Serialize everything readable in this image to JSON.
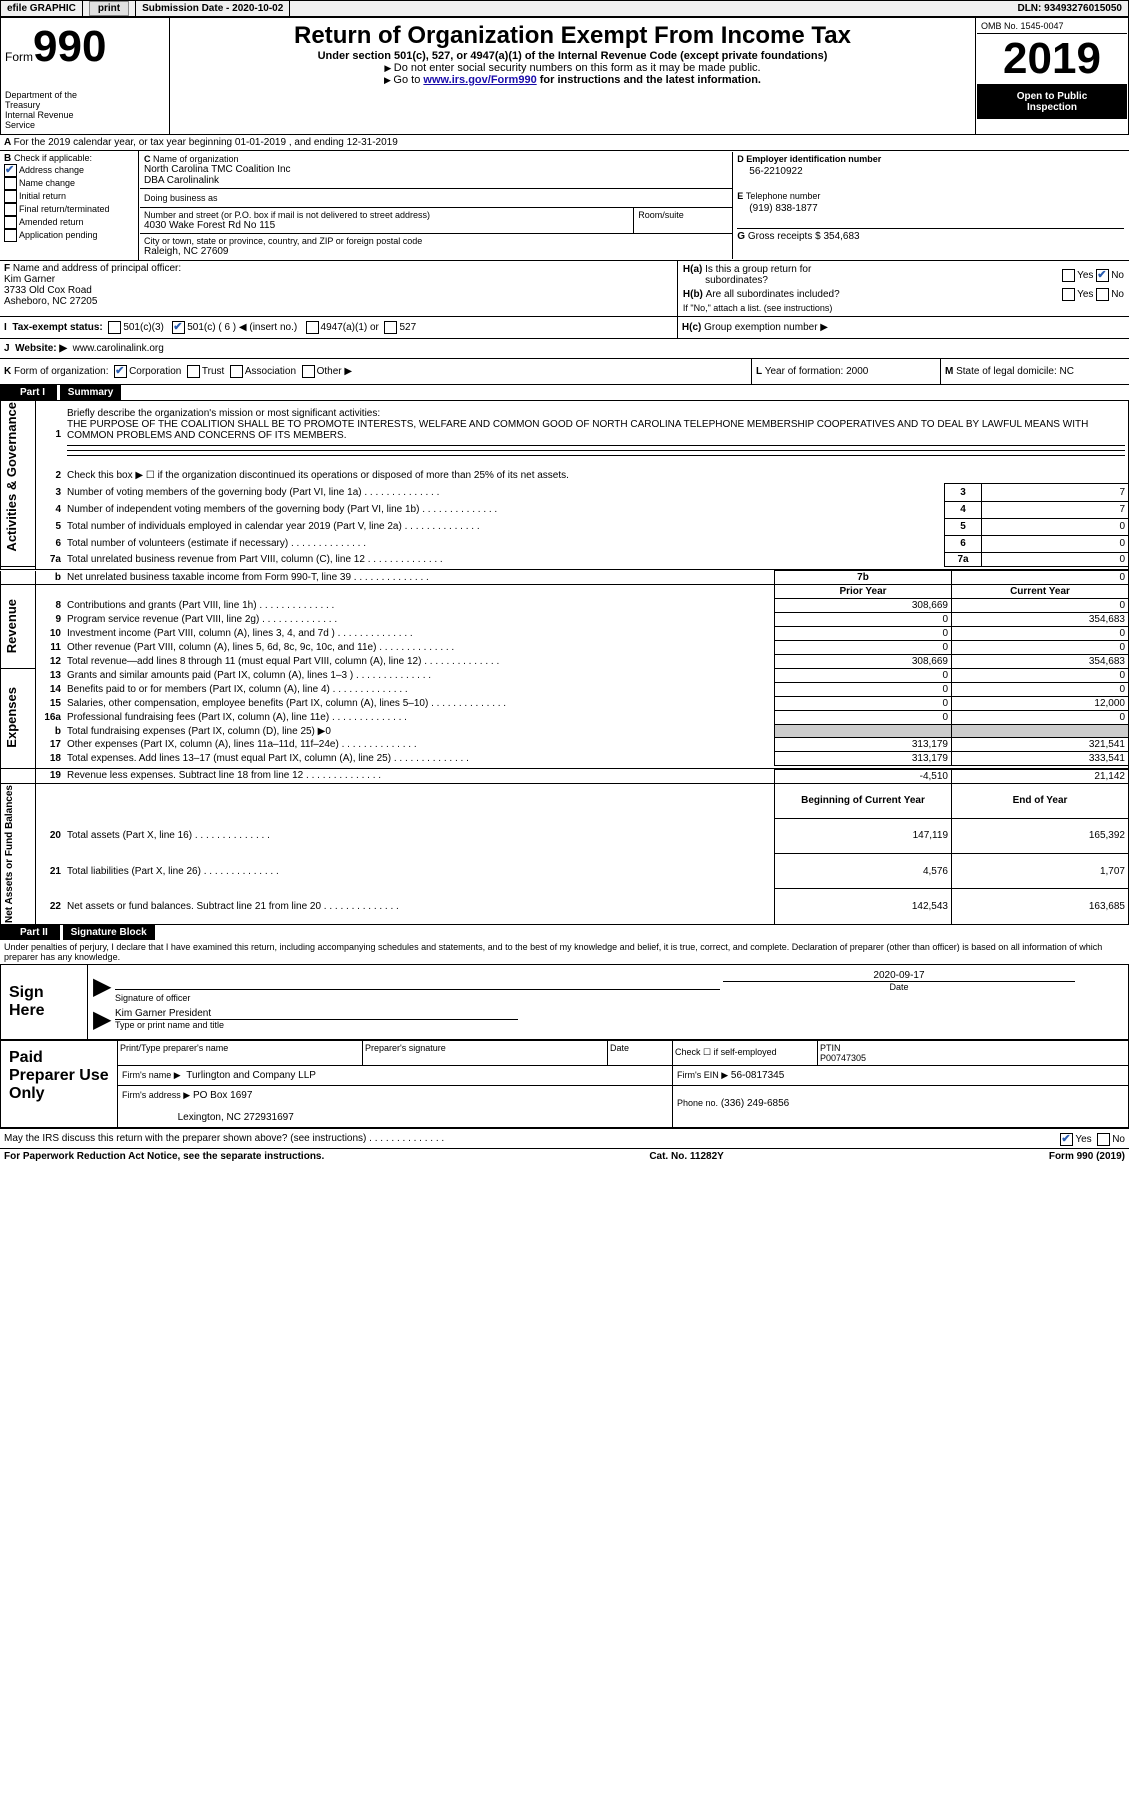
{
  "topbar": {
    "efile": "efile GRAPHIC",
    "print": "print",
    "subdate_label": "Submission Date - 2020-10-02",
    "dln": "DLN: 93493276015050"
  },
  "header": {
    "form_word": "Form",
    "form_num": "990",
    "dept1": "Department of the",
    "dept2": "Treasury",
    "dept3": "Internal Revenue",
    "dept4": "Service",
    "title": "Return of Organization Exempt From Income Tax",
    "sub1": "Under section 501(c), 527, or 4947(a)(1) of the Internal Revenue Code (except private foundations)",
    "sub2": "Do not enter social security numbers on this form as it may be made public.",
    "sub3_pre": "Go to ",
    "sub3_link": "www.irs.gov/Form990",
    "sub3_post": " for instructions and the latest information.",
    "omb": "OMB No. 1545-0047",
    "year": "2019",
    "inspection1": "Open to Public",
    "inspection2": "Inspection"
  },
  "sectionA": {
    "calendar": "For the 2019 calendar year, or tax year beginning 01-01-2019    , and ending 12-31-2019",
    "check_label": "Check if applicable:",
    "opts": {
      "address": "Address change",
      "name": "Name change",
      "initial": "Initial return",
      "final": "Final return/terminated",
      "amended": "Amended return",
      "app": "Application pending"
    },
    "name_label": "Name of organization",
    "org_name": "North Carolina TMC Coalition Inc",
    "dba": "DBA Carolinalink",
    "dba_label": "Doing business as",
    "street_label": "Number and street (or P.O. box if mail is not delivered to street address)",
    "street": "4030 Wake Forest Rd No 115",
    "room_label": "Room/suite",
    "city_label": "City or town, state or province, country, and ZIP or foreign postal code",
    "city": "Raleigh, NC  27609",
    "ein_label": "Employer identification number",
    "ein": "56-2210922",
    "phone_label": "Telephone number",
    "phone": "(919) 838-1877",
    "gross_label": "Gross receipts $",
    "gross": "354,683",
    "officer_label": "Name and address of principal officer:",
    "officer_name": "Kim Garner",
    "officer_addr1": "3733 Old Cox Road",
    "officer_addr2": "Asheboro, NC  27205",
    "ha": "Is this a group return for",
    "ha2": "subordinates?",
    "hb": "Are all subordinates included?",
    "hb_note": "If \"No,\" attach a list. (see instructions)",
    "hc": "Group exemption number ▶",
    "yes": "Yes",
    "no": "No",
    "tax_label": "Tax-exempt status:",
    "c3": "501(c)(3)",
    "c_blank": "501(c) ( 6 ) ◀ (insert no.)",
    "a1": "4947(a)(1) or",
    "s527": "527",
    "website_label": "Website: ▶",
    "website": "www.carolinalink.org",
    "formorg_label": "Form of organization:",
    "corp": "Corporation",
    "trust": "Trust",
    "assoc": "Association",
    "other": "Other ▶",
    "yof_label": "Year of formation:",
    "yof": "2000",
    "state_label": "State of legal domicile:",
    "state": "NC"
  },
  "part1": {
    "header": "Part I",
    "title": "Summary",
    "l1_label": "Briefly describe the organization's mission or most significant activities:",
    "l1_text": "THE PURPOSE OF THE COALITION SHALL BE TO PROMOTE INTERESTS, WELFARE AND COMMON GOOD OF NORTH CAROLINA TELEPHONE MEMBERSHIP COOPERATIVES AND TO DEAL BY LAWFUL MEANS WITH COMMON PROBLEMS AND CONCERNS OF ITS MEMBERS.",
    "l2": "Check this box ▶ ☐ if the organization discontinued its operations or disposed of more than 25% of its net assets.",
    "rows": {
      "l3": {
        "num": "3",
        "label": "Number of voting members of the governing body (Part VI, line 1a)",
        "box": "3",
        "val": "7"
      },
      "l4": {
        "num": "4",
        "label": "Number of independent voting members of the governing body (Part VI, line 1b)",
        "box": "4",
        "val": "7"
      },
      "l5": {
        "num": "5",
        "label": "Total number of individuals employed in calendar year 2019 (Part V, line 2a)",
        "box": "5",
        "val": "0"
      },
      "l6": {
        "num": "6",
        "label": "Total number of volunteers (estimate if necessary)",
        "box": "6",
        "val": "0"
      },
      "l7a": {
        "num": "7a",
        "label": "Total unrelated business revenue from Part VIII, column (C), line 12",
        "box": "7a",
        "val": "0"
      },
      "l7b": {
        "num": "b",
        "label": "Net unrelated business taxable income from Form 990-T, line 39",
        "box": "7b",
        "val": "0"
      }
    },
    "cols": {
      "prior": "Prior Year",
      "current": "Current Year"
    },
    "revenue_label": "Revenue",
    "activities_label": "Activities & Governance",
    "expenses_label": "Expenses",
    "net_label": "Net Assets or Fund Balances",
    "tworows": {
      "l8": {
        "num": "8",
        "label": "Contributions and grants (Part VIII, line 1h)",
        "p": "308,669",
        "c": "0"
      },
      "l9": {
        "num": "9",
        "label": "Program service revenue (Part VIII, line 2g)",
        "p": "0",
        "c": "354,683"
      },
      "l10": {
        "num": "10",
        "label": "Investment income (Part VIII, column (A), lines 3, 4, and 7d )",
        "p": "0",
        "c": "0"
      },
      "l11": {
        "num": "11",
        "label": "Other revenue (Part VIII, column (A), lines 5, 6d, 8c, 9c, 10c, and 11e)",
        "p": "0",
        "c": "0"
      },
      "l12": {
        "num": "12",
        "label": "Total revenue—add lines 8 through 11 (must equal Part VIII, column (A), line 12)",
        "p": "308,669",
        "c": "354,683"
      },
      "l13": {
        "num": "13",
        "label": "Grants and similar amounts paid (Part IX, column (A), lines 1–3 )",
        "p": "0",
        "c": "0"
      },
      "l14": {
        "num": "14",
        "label": "Benefits paid to or for members (Part IX, column (A), line 4)",
        "p": "0",
        "c": "0"
      },
      "l15": {
        "num": "15",
        "label": "Salaries, other compensation, employee benefits (Part IX, column (A), lines 5–10)",
        "p": "0",
        "c": "12,000"
      },
      "l16a": {
        "num": "16a",
        "label": "Professional fundraising fees (Part IX, column (A), line 11e)",
        "p": "0",
        "c": "0"
      },
      "l16b": {
        "num": "b",
        "label": "Total fundraising expenses (Part IX, column (D), line 25) ▶0"
      },
      "l17": {
        "num": "17",
        "label": "Other expenses (Part IX, column (A), lines 11a–11d, 11f–24e)",
        "p": "313,179",
        "c": "321,541"
      },
      "l18": {
        "num": "18",
        "label": "Total expenses. Add lines 13–17 (must equal Part IX, column (A), line 25)",
        "p": "313,179",
        "c": "333,541"
      },
      "l19": {
        "num": "19",
        "label": "Revenue less expenses. Subtract line 18 from line 12",
        "p": "-4,510",
        "c": "21,142"
      }
    },
    "cols2": {
      "begin": "Beginning of Current Year",
      "end": "End of Year"
    },
    "netrows": {
      "l20": {
        "num": "20",
        "label": "Total assets (Part X, line 16)",
        "p": "147,119",
        "c": "165,392"
      },
      "l21": {
        "num": "21",
        "label": "Total liabilities (Part X, line 26)",
        "p": "4,576",
        "c": "1,707"
      },
      "l22": {
        "num": "22",
        "label": "Net assets or fund balances. Subtract line 21 from line 20",
        "p": "142,543",
        "c": "163,685"
      }
    }
  },
  "part2": {
    "header": "Part II",
    "title": "Signature Block",
    "penalties": "Under penalties of perjury, I declare that I have examined this return, including accompanying schedules and statements, and to the best of my knowledge and belief, it is true, correct, and complete. Declaration of preparer (other than officer) is based on all information of which preparer has any knowledge.",
    "sign_here": "Sign Here",
    "sig_officer": "Signature of officer",
    "date_label": "Date",
    "date": "2020-09-17",
    "officer_name": "Kim Garner  President",
    "type_name": "Type or print name and title",
    "paid_label": "Paid Preparer Use Only",
    "prep_name_label": "Print/Type preparer's name",
    "prep_sig_label": "Preparer's signature",
    "check_self": "Check ☐ if self-employed",
    "ptin_label": "PTIN",
    "ptin": "P00747305",
    "firm_name_label": "Firm's name    ▶",
    "firm_name": "Turlington and Company LLP",
    "firm_ein_label": "Firm's EIN ▶",
    "firm_ein": "56-0817345",
    "firm_addr_label": "Firm's address ▶",
    "firm_addr1": "PO Box 1697",
    "firm_addr2": "Lexington, NC  272931697",
    "phone_label": "Phone no.",
    "phone": "(336) 249-6856",
    "discuss": "May the IRS discuss this return with the preparer shown above? (see instructions)",
    "yes": "Yes",
    "no": "No"
  },
  "footer": {
    "left": "For Paperwork Reduction Act Notice, see the separate instructions.",
    "mid": "Cat. No. 11282Y",
    "right": "Form 990 (2019)"
  }
}
